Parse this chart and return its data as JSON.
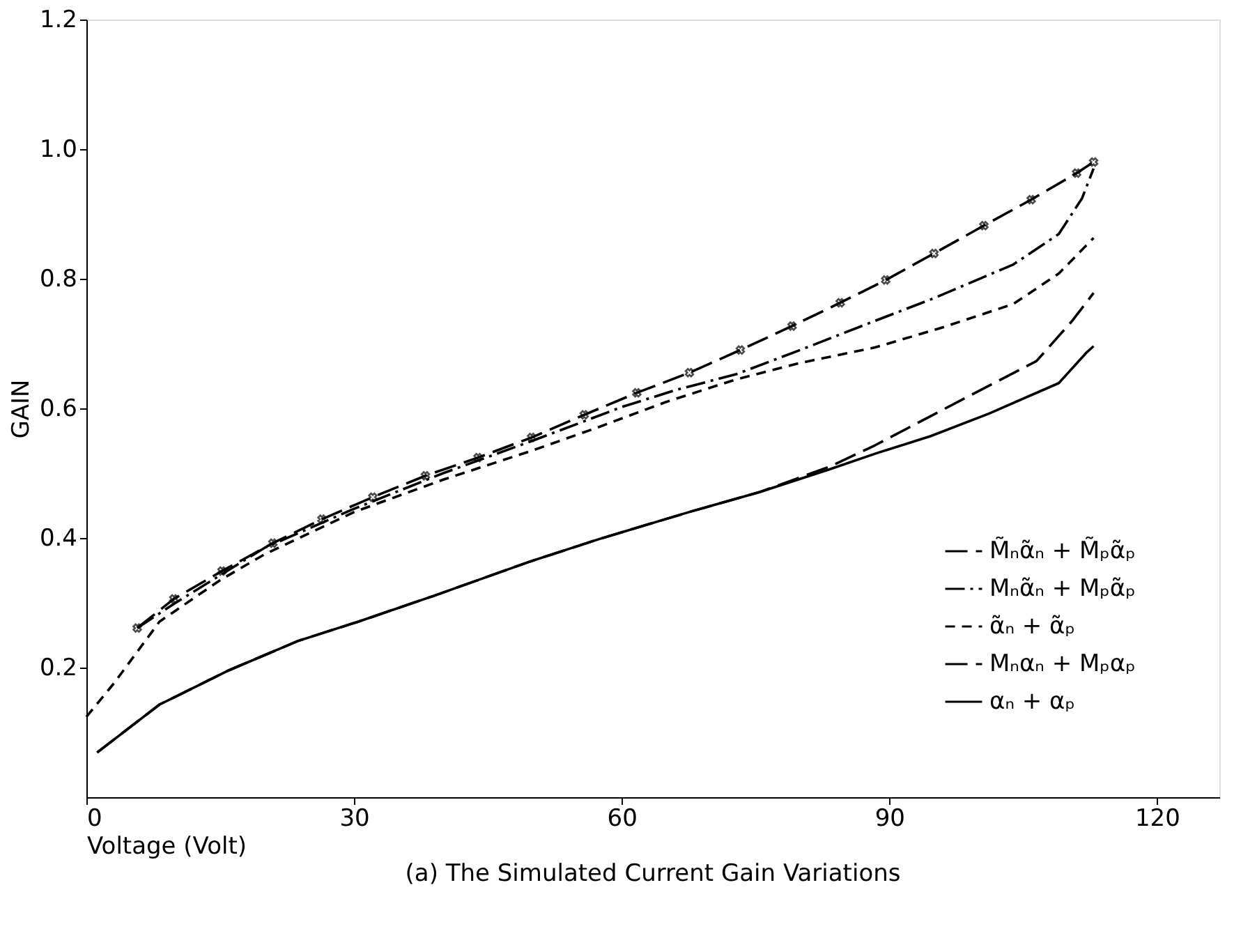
{
  "chart_data": {
    "type": "line",
    "title": "(a) The Simulated Current Gain Variations",
    "xlabel": "Voltage (Volt)",
    "ylabel": "GAIN",
    "xlim": [
      0,
      127
    ],
    "xticks": [
      0,
      30,
      60,
      90,
      120
    ],
    "ylim": [
      0,
      1.2
    ],
    "yticks": [
      0.2,
      0.4,
      0.6,
      0.8,
      {
        "value": 1,
        "label": "1.0"
      },
      1.2
    ],
    "tick_labels": "xy",
    "grid": false,
    "legend": "bottom right",
    "series": [
      {
        "name": "M̃ₙα̃ₙ + M̃ₚα̃ₚ",
        "color": "#000000",
        "line_style": "longdash",
        "marker": "cross",
        "x": [
          5.7,
          9.8,
          15.2,
          20.9,
          26.4,
          32.1,
          38,
          43.9,
          49.9,
          55.8,
          61.7,
          67.6,
          73.3,
          79.1,
          84.5,
          89.6,
          95,
          100.6,
          105.9,
          111,
          112.9
        ],
        "values": [
          0.261,
          0.306,
          0.349,
          0.392,
          0.429,
          0.463,
          0.496,
          0.524,
          0.555,
          0.59,
          0.624,
          0.655,
          0.69,
          0.727,
          0.763,
          0.798,
          0.839,
          0.882,
          0.922,
          0.963,
          0.98
        ]
      },
      {
        "name": "Mₙα̃ₙ + Mₚα̃ₚ",
        "color": "#000000",
        "line_style": "dashdot",
        "marker": "none",
        "x": [
          5.7,
          10,
          20,
          30,
          40,
          50,
          60,
          66,
          72.9,
          80,
          88.4,
          95,
          103.9,
          109,
          111.6,
          112.9
        ],
        "values": [
          0.261,
          0.3,
          0.385,
          0.445,
          0.5,
          0.55,
          0.602,
          0.628,
          0.653,
          0.69,
          0.735,
          0.77,
          0.822,
          0.869,
          0.924,
          0.97
        ]
      },
      {
        "name": "α̃ₙ + α̃ₚ",
        "color": "#000000",
        "line_style": "dashed",
        "marker": "none",
        "x": [
          0,
          3.1,
          8.2,
          15,
          20,
          30,
          40,
          50,
          57.4,
          65,
          72.9,
          80,
          88.4,
          96,
          103.9,
          109,
          112.9
        ],
        "values": [
          0.124,
          0.176,
          0.271,
          0.335,
          0.375,
          0.44,
          0.49,
          0.535,
          0.571,
          0.61,
          0.645,
          0.67,
          0.694,
          0.725,
          0.761,
          0.808,
          0.863
        ]
      },
      {
        "name": "Mₙαₙ + Mₚαₚ",
        "color": "#000000",
        "line_style": "longdash",
        "marker": "none",
        "x": [
          1.2,
          8.2,
          16,
          23.7,
          30.5,
          39.2,
          49.6,
          57.4,
          67.8,
          75.5,
          83.3,
          88.4,
          98.8,
          106.5,
          110.5,
          112.9
        ],
        "values": [
          0.069,
          0.143,
          0.196,
          0.241,
          0.271,
          0.312,
          0.363,
          0.398,
          0.441,
          0.471,
          0.51,
          0.543,
          0.618,
          0.673,
          0.735,
          0.778
        ]
      },
      {
        "name": "αₙ + αₚ",
        "color": "#000000",
        "line_style": "solid",
        "marker": "none",
        "x": [
          1.2,
          8.2,
          16,
          23.7,
          30.5,
          39.2,
          49.6,
          57.4,
          67.8,
          75.5,
          83.3,
          88.4,
          94.6,
          101.2,
          109,
          112.1,
          112.9
        ],
        "values": [
          0.069,
          0.143,
          0.196,
          0.241,
          0.271,
          0.312,
          0.363,
          0.398,
          0.441,
          0.471,
          0.506,
          0.53,
          0.557,
          0.592,
          0.639,
          0.686,
          0.696
        ]
      }
    ]
  }
}
